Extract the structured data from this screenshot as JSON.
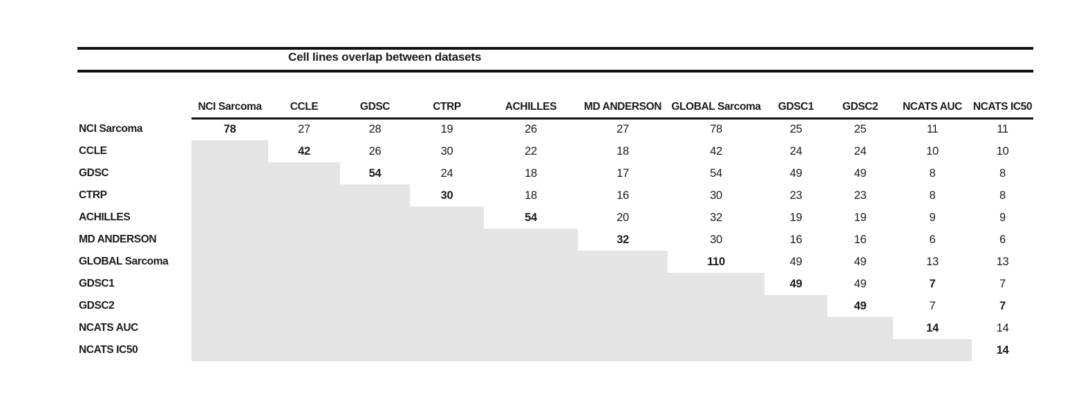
{
  "title": "Cell lines overlap between datasets",
  "chart_data": {
    "type": "table",
    "title": "Cell lines overlap between datasets",
    "columns": [
      "NCI Sarcoma",
      "CCLE",
      "GDSC",
      "CTRP",
      "ACHILLES",
      "MD ANDERSON",
      "GLOBAL Sarcoma",
      "GDSC1",
      "GDSC2",
      "NCATS AUC",
      "NCATS IC50"
    ],
    "row_labels": [
      "NCI Sarcoma",
      "CCLE",
      "GDSC",
      "CTRP",
      "ACHILLES",
      "MD ANDERSON",
      "GLOBAL Sarcoma",
      "GDSC1",
      "GDSC2",
      "NCATS AUC",
      "NCATS IC50"
    ],
    "values": [
      [
        78,
        27,
        28,
        19,
        26,
        27,
        78,
        25,
        25,
        11,
        11
      ],
      [
        null,
        42,
        26,
        30,
        22,
        18,
        42,
        24,
        24,
        10,
        10
      ],
      [
        null,
        null,
        54,
        24,
        18,
        17,
        54,
        49,
        49,
        8,
        8
      ],
      [
        null,
        null,
        null,
        30,
        18,
        16,
        30,
        23,
        23,
        8,
        8
      ],
      [
        null,
        null,
        null,
        null,
        54,
        20,
        32,
        19,
        19,
        9,
        9
      ],
      [
        null,
        null,
        null,
        null,
        null,
        32,
        30,
        16,
        16,
        6,
        6
      ],
      [
        null,
        null,
        null,
        null,
        null,
        null,
        110,
        49,
        49,
        13,
        13
      ],
      [
        null,
        null,
        null,
        null,
        null,
        null,
        null,
        49,
        49,
        7,
        7
      ],
      [
        null,
        null,
        null,
        null,
        null,
        null,
        null,
        null,
        49,
        7,
        7
      ],
      [
        null,
        null,
        null,
        null,
        null,
        null,
        null,
        null,
        null,
        14,
        14
      ],
      [
        null,
        null,
        null,
        null,
        null,
        null,
        null,
        null,
        null,
        null,
        14
      ]
    ],
    "bold_cells": [
      [
        0,
        0
      ],
      [
        1,
        1
      ],
      [
        2,
        2
      ],
      [
        3,
        3
      ],
      [
        4,
        4
      ],
      [
        5,
        5
      ],
      [
        6,
        6
      ],
      [
        7,
        7
      ],
      [
        8,
        8
      ],
      [
        9,
        9
      ],
      [
        10,
        10
      ],
      [
        7,
        9
      ],
      [
        8,
        10
      ]
    ],
    "shaded_region": "lower-triangle",
    "shade_color": "#e6e5e5",
    "rule_color": "#121212"
  }
}
